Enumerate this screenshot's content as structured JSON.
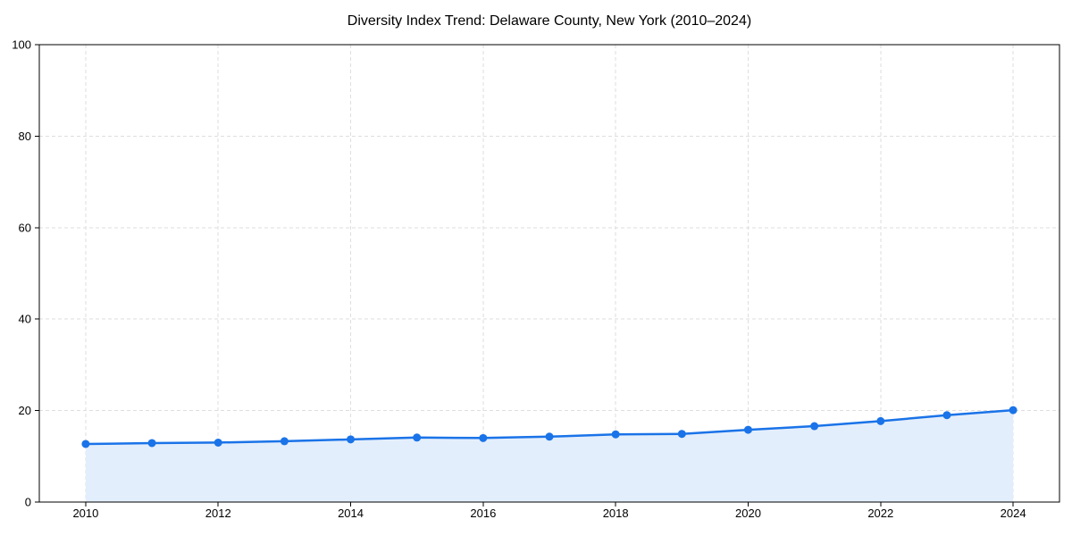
{
  "chart_data": {
    "type": "area",
    "title": "Diversity Index Trend: Delaware County, New York (2010–2024)",
    "x": [
      2010,
      2011,
      2012,
      2013,
      2014,
      2015,
      2016,
      2017,
      2018,
      2019,
      2020,
      2021,
      2022,
      2023,
      2024
    ],
    "series": [
      {
        "name": "Diversity Index",
        "values": [
          12.7,
          12.9,
          13.0,
          13.3,
          13.7,
          14.1,
          14.0,
          14.3,
          14.8,
          14.9,
          15.8,
          16.6,
          17.7,
          19.0,
          20.1
        ]
      }
    ],
    "xlabel": "",
    "ylabel": "",
    "xlim": [
      2009.3,
      2024.7
    ],
    "ylim": [
      0,
      100
    ],
    "xticks": [
      2010,
      2012,
      2014,
      2016,
      2018,
      2020,
      2022,
      2024
    ],
    "yticks": [
      0,
      20,
      40,
      60,
      80,
      100
    ],
    "grid": true,
    "grid_style": "dashed",
    "legend": false,
    "colors": {
      "line": "#1a73e8",
      "marker": "#1a73e8",
      "fill": "#e3eefc",
      "grid": "#dedede",
      "axis": "#000000",
      "text": "#000000",
      "background": "#ffffff"
    }
  }
}
